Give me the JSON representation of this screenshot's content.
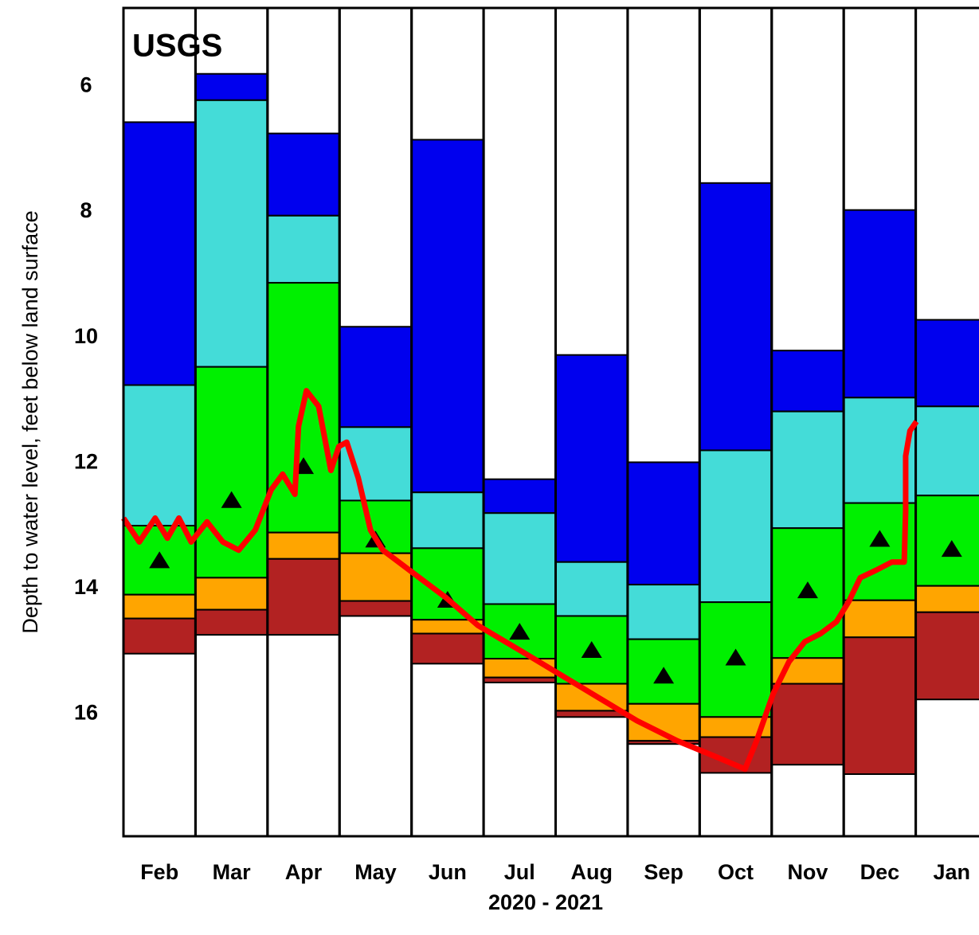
{
  "chart_data": {
    "type": "percentile",
    "annotation": "USGS",
    "annotation_color": "#1a8a1a",
    "x_label": "2020 - 2021",
    "y_label": "Depth to water level, feet below land surface",
    "categories": [
      "Feb",
      "Mar",
      "Apr",
      "May",
      "Jun",
      "Jul",
      "Aug",
      "Sep",
      "Oct",
      "Nov",
      "Dec",
      "Jan"
    ],
    "band_colors": [
      "#0000ee",
      "#44dcd8",
      "#00f000",
      "#ffa500",
      "#b22222"
    ],
    "bounds": [
      [
        6.57,
        10.76,
        13.0,
        14.1,
        14.48,
        15.04
      ],
      [
        5.8,
        6.22,
        10.47,
        13.83,
        14.34,
        14.74
      ],
      [
        6.75,
        8.06,
        9.13,
        13.11,
        13.53,
        14.74
      ],
      [
        9.83,
        11.43,
        12.6,
        13.44,
        14.2,
        14.44
      ],
      [
        6.85,
        12.47,
        13.36,
        14.5,
        14.72,
        15.2
      ],
      [
        12.26,
        12.8,
        14.25,
        15.12,
        15.42,
        15.5
      ],
      [
        10.28,
        13.58,
        14.44,
        15.52,
        15.95,
        16.05
      ],
      [
        11.99,
        13.94,
        14.81,
        15.84,
        16.43,
        16.48
      ],
      [
        7.54,
        11.8,
        14.22,
        16.05,
        16.37,
        16.94
      ],
      [
        10.21,
        11.18,
        13.04,
        15.11,
        15.52,
        16.81
      ],
      [
        7.97,
        10.96,
        12.64,
        14.19,
        14.78,
        16.96
      ],
      [
        9.72,
        11.1,
        12.52,
        13.96,
        14.38,
        15.77
      ]
    ],
    "medians": [
      13.55,
      12.59,
      12.05,
      13.22,
      14.18,
      14.69,
      14.98,
      15.39,
      15.1,
      14.03,
      13.21,
      13.37
    ],
    "median_color": "#000000",
    "line": {
      "color": "#ff0000",
      "x": [
        0,
        0.22,
        0.44,
        0.61,
        0.77,
        0.94,
        1.16,
        1.38,
        1.6,
        1.83,
        2.05,
        2.21,
        2.38,
        2.43,
        2.54,
        2.71,
        2.88,
        2.99,
        3.1,
        3.26,
        3.43,
        3.6,
        4.04,
        4.48,
        4.92,
        5.48,
        6.03,
        6.58,
        7.13,
        7.69,
        8.24,
        8.63,
        8.79,
        9.02,
        9.24,
        9.46,
        9.68,
        9.9,
        10.07,
        10.23,
        10.45,
        10.67,
        10.84,
        10.86,
        10.86,
        10.92,
        11.01
      ],
      "values": [
        12.88,
        13.26,
        12.88,
        13.2,
        12.88,
        13.26,
        12.94,
        13.26,
        13.39,
        13.07,
        12.43,
        12.18,
        12.5,
        11.42,
        10.85,
        11.1,
        12.12,
        11.74,
        11.67,
        12.24,
        13.07,
        13.39,
        13.77,
        14.15,
        14.59,
        14.97,
        15.35,
        15.73,
        16.11,
        16.43,
        16.69,
        16.88,
        16.43,
        15.68,
        15.17,
        14.85,
        14.72,
        14.53,
        14.21,
        13.83,
        13.71,
        13.58,
        13.58,
        12.77,
        11.89,
        11.49,
        11.34
      ]
    },
    "xlim": [
      0,
      12
    ],
    "ylim": [
      4.75,
      17.95
    ],
    "invert_y": true,
    "yticks": [
      6,
      8,
      10,
      12,
      14,
      16
    ],
    "grid": false
  }
}
